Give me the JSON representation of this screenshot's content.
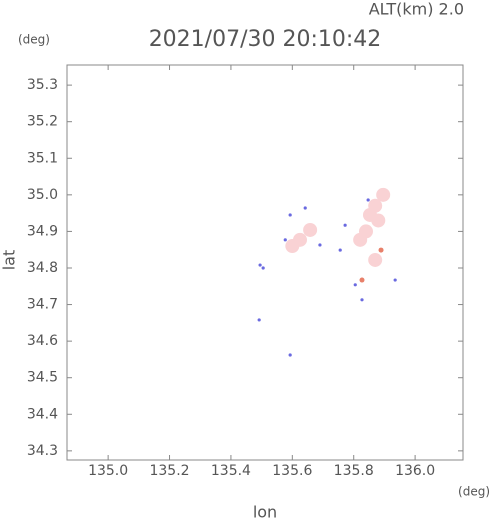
{
  "chart_data": {
    "type": "scatter",
    "title": "2021/07/30 20:10:42",
    "altitude_label": "ALT(km)  2.0",
    "y_unit": "(deg)",
    "x_unit": "(deg)",
    "x_label": "lon",
    "y_label": "lat",
    "xlim": [
      134.866,
      136.156
    ],
    "ylim": [
      34.275,
      35.355
    ],
    "xticks": [
      {
        "value": 135.0,
        "label": "135.0"
      },
      135.2,
      135.4,
      135.6,
      135.8,
      {
        "value": 136.0,
        "label": "136.0"
      }
    ],
    "yticks": [
      34.3,
      34.4,
      34.5,
      34.6,
      34.7,
      34.8,
      34.9,
      {
        "value": 35.0,
        "label": "35.0"
      },
      35.1,
      35.2,
      35.3
    ],
    "grid": false,
    "series": [
      {
        "color": "#f9d2d4",
        "size": 7,
        "x": [
          135.625,
          135.658,
          135.853,
          135.896,
          135.821,
          135.87,
          135.88,
          135.84,
          135.6,
          135.87
        ],
        "values": [
          34.877,
          34.904,
          34.945,
          35.0,
          34.877,
          34.822,
          34.93,
          34.9,
          34.86,
          34.97
        ]
      },
      {
        "color": "#6a6ae0",
        "size": 1.6,
        "x": [
          135.495,
          135.593,
          135.492,
          135.69,
          135.756,
          135.805,
          135.827,
          135.935,
          135.577,
          135.772,
          135.847,
          135.593,
          135.642,
          135.505
        ],
        "values": [
          34.808,
          34.562,
          34.658,
          34.863,
          34.849,
          34.754,
          34.713,
          34.767,
          34.877,
          34.917,
          34.986,
          34.945,
          34.964,
          34.8
        ]
      },
      {
        "color": "#e8806a",
        "size": 2.5,
        "x": [
          135.889,
          135.827
        ],
        "values": [
          34.849,
          34.767
        ]
      }
    ]
  }
}
